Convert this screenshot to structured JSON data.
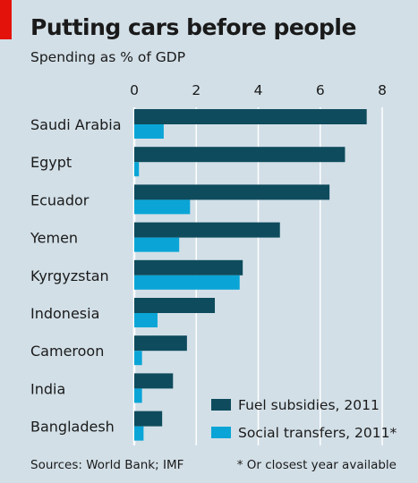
{
  "header": {
    "title": "Putting cars before people",
    "subtitle": "Spending as % of GDP"
  },
  "footer": {
    "source": "Sources: World Bank; IMF",
    "footnote": "* Or closest year available"
  },
  "colors": {
    "background": "#d2dfe7",
    "fuel": "#0e4b5d",
    "social": "#0aa5d6",
    "grid": "#ffffff",
    "accent": "#e3120b"
  },
  "chart_data": {
    "type": "bar",
    "orientation": "horizontal",
    "title": "Putting cars before people",
    "subtitle": "Spending as % of GDP",
    "categories": [
      "Saudi Arabia",
      "Egypt",
      "Ecuador",
      "Yemen",
      "Kyrgyzstan",
      "Indonesia",
      "Cameroon",
      "India",
      "Bangladesh"
    ],
    "series": [
      {
        "name": "Fuel subsidies, 2011",
        "values": [
          7.5,
          6.8,
          6.3,
          4.7,
          3.5,
          2.6,
          1.7,
          1.25,
          0.9
        ]
      },
      {
        "name": "Social transfers, 2011*",
        "values": [
          0.95,
          0.15,
          1.8,
          1.45,
          3.4,
          0.75,
          0.25,
          0.25,
          0.3
        ]
      }
    ],
    "xlim": [
      0,
      8
    ],
    "xticks": [
      "0",
      "2",
      "4",
      "6",
      "8"
    ],
    "tick_values": [
      0,
      2,
      4,
      6,
      8
    ],
    "axis_position": "top",
    "grid": true,
    "legend": "bottom-right"
  }
}
